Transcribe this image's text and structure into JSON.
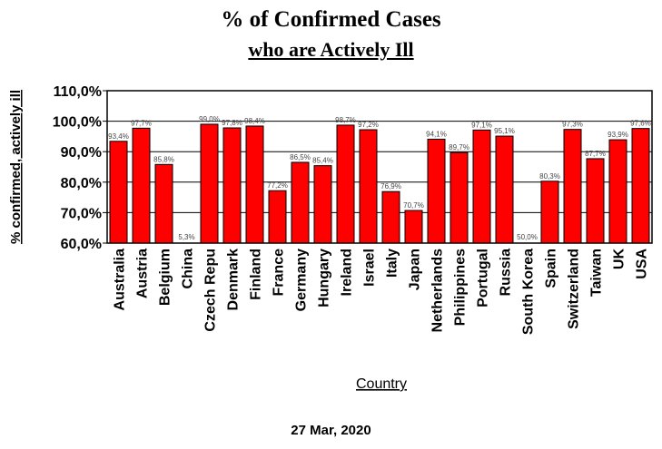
{
  "chart_data": {
    "type": "bar",
    "title": "% of Confirmed Cases",
    "subtitle": "who are Actively Ill",
    "xlabel": "Country",
    "ylabel": "% confirmed, actively ill",
    "ylim": [
      60,
      110
    ],
    "yticks": [
      "60,0%",
      "70,0%",
      "80,0%",
      "90,0%",
      "100,0%",
      "110,0%"
    ],
    "ytick_values": [
      60,
      70,
      80,
      90,
      100,
      110
    ],
    "grid": "horizontal",
    "bar_color": "#ff0000",
    "categories": [
      "Australia",
      "Austria",
      "Belgium",
      "China",
      "Czech Repu",
      "Denmark",
      "Finland",
      "France",
      "Germany",
      "Hungary",
      "Ireland",
      "Israel",
      "Italy",
      "Japan",
      "Netherlands",
      "Philippines",
      "Portugal",
      "Russia",
      "South Korea",
      "Spain",
      "Switzerland",
      "Taiwan",
      "UK",
      "USA"
    ],
    "values": [
      93.4,
      97.7,
      85.8,
      5.3,
      99.0,
      97.8,
      98.4,
      77.2,
      86.5,
      85.4,
      98.7,
      97.2,
      76.9,
      70.7,
      94.1,
      89.7,
      97.1,
      95.1,
      50.0,
      80.3,
      97.3,
      87.7,
      93.9,
      97.6
    ],
    "data_labels": [
      "93,4%",
      "97,7%",
      "85,8%",
      "5,3%",
      "99,0%",
      "97,8%",
      "98,4%",
      "77,2%",
      "86,5%",
      "85,4%",
      "98,7%",
      "97,2%",
      "76,9%",
      "70,7%",
      "94,1%",
      "89,7%",
      "97,1%",
      "95,1%",
      "50,0%",
      "80,3%",
      "97,3%",
      "87,7%",
      "93,9%",
      "97,6%"
    ]
  },
  "footer": {
    "date": "27 Mar, 2020"
  }
}
